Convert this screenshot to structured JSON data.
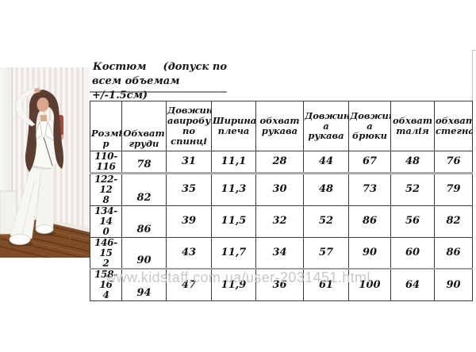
{
  "title": {
    "product": "Костюм",
    "tolerance_open": "(допуск по",
    "tolerance_line2": "всем объемам +/-1.5см)"
  },
  "size_table": {
    "headers": [
      "Розмі\nр",
      "Обхват\nгруди",
      "Довжин\nавиробу\nпо\nспинці",
      "Ширина\nплеча",
      "обхват\nрукава",
      "Довжин\nа рукава",
      "Довжин\nа брюки",
      "обхват\nталія",
      "обхват\nстегна"
    ],
    "rows": [
      [
        "110-116",
        "78",
        "31",
        "11,1",
        "28",
        "44",
        "67",
        "48",
        "76"
      ],
      [
        "122-12\n8",
        "82",
        "35",
        "11,3",
        "30",
        "48",
        "73",
        "52",
        "79"
      ],
      [
        "134-14\n0",
        "86",
        "39",
        "11,5",
        "32",
        "52",
        "86",
        "56",
        "82"
      ],
      [
        "146-15\n2",
        "90",
        "43",
        "11,7",
        "34",
        "57",
        "90",
        "60",
        "86"
      ],
      [
        "158-16\n4",
        "94",
        "47",
        "11,9",
        "36",
        "61",
        "100",
        "64",
        "90"
      ]
    ]
  },
  "watermark": "www.kidstaff.com.ua/user-2031451.html",
  "photo_colors": {
    "wall_cream": "#f4f2ed",
    "wall_rib_shadow": "#e3e0d9",
    "floor_wood": "#7e4c27",
    "floor_wood_dark": "#5d3617",
    "hair_brown": "#5c3e30",
    "skin": "#d9a88c",
    "suit_white": "#f8f7f4",
    "held_item_red": "#a34a3b",
    "watermark_gray": "#c8c8c8"
  }
}
